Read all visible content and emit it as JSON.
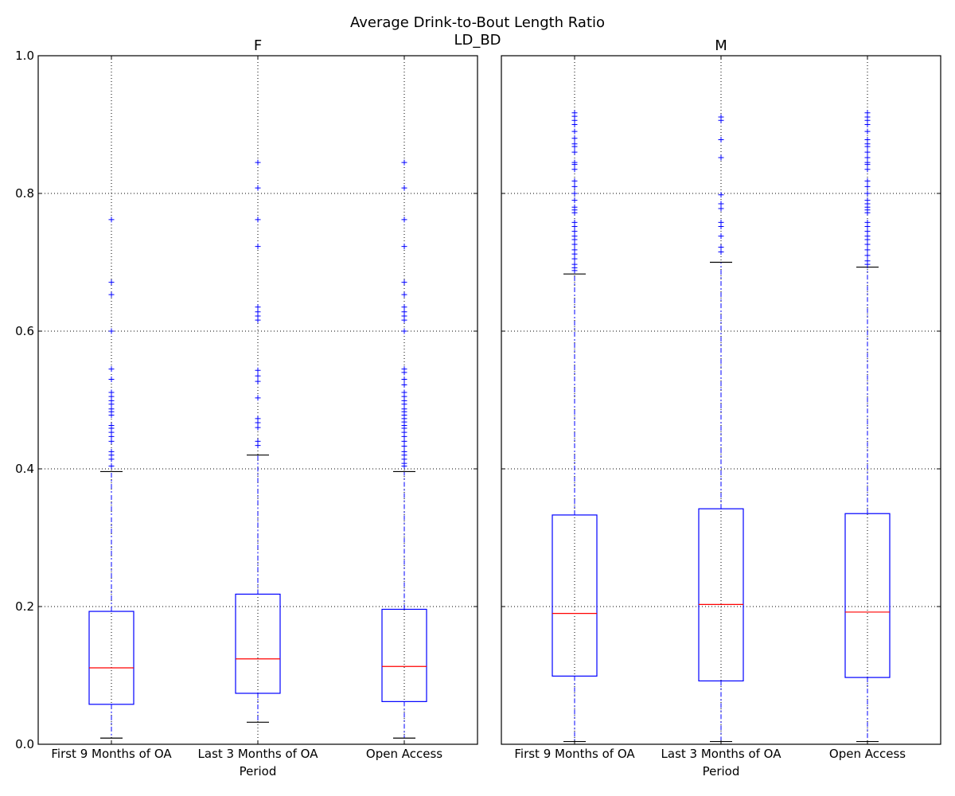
{
  "figure": {
    "suptitle": "Average Drink-to-Bout Length Ratio",
    "subtitle": "LD_BD"
  },
  "colors": {
    "box": "#0000ff",
    "median": "#ff0000",
    "whisker": "#0000ff",
    "cap": "#000000",
    "flier": "#0000ff",
    "grid": "#000000"
  },
  "chart_data": [
    {
      "type": "box",
      "title": "F",
      "xlabel": "Period",
      "ylabel": "",
      "ylim": [
        0.0,
        1.0
      ],
      "yticks": [
        0.0,
        0.2,
        0.4,
        0.6,
        0.8,
        1.0
      ],
      "ytick_labels": [
        "0.0",
        "0.2",
        "0.4",
        "0.6",
        "0.8",
        "1.0"
      ],
      "grid": true,
      "categories": [
        "First 9 Months of OA",
        "Last 3 Months of OA",
        "Open Access"
      ],
      "boxes": [
        {
          "whislo": 0.009,
          "q1": 0.058,
          "med": 0.111,
          "q3": 0.193,
          "whishi": 0.396,
          "fliers": [
            0.404,
            0.414,
            0.42,
            0.425,
            0.44,
            0.447,
            0.453,
            0.459,
            0.463,
            0.478,
            0.483,
            0.487,
            0.494,
            0.499,
            0.505,
            0.511,
            0.53,
            0.545,
            0.6,
            0.653,
            0.671,
            0.762
          ]
        },
        {
          "whislo": 0.032,
          "q1": 0.074,
          "med": 0.124,
          "q3": 0.218,
          "whishi": 0.42,
          "fliers": [
            0.434,
            0.44,
            0.46,
            0.467,
            0.473,
            0.503,
            0.527,
            0.535,
            0.543,
            0.616,
            0.622,
            0.628,
            0.635,
            0.723,
            0.762,
            0.808,
            0.845
          ]
        },
        {
          "whislo": 0.009,
          "q1": 0.062,
          "med": 0.113,
          "q3": 0.196,
          "whishi": 0.396,
          "fliers": [
            0.404,
            0.408,
            0.414,
            0.42,
            0.425,
            0.433,
            0.44,
            0.447,
            0.453,
            0.459,
            0.463,
            0.468,
            0.473,
            0.478,
            0.483,
            0.487,
            0.494,
            0.499,
            0.505,
            0.511,
            0.522,
            0.53,
            0.54,
            0.545,
            0.6,
            0.616,
            0.622,
            0.628,
            0.635,
            0.653,
            0.671,
            0.723,
            0.762,
            0.808,
            0.845
          ]
        }
      ]
    },
    {
      "type": "box",
      "title": "M",
      "xlabel": "Period",
      "ylabel": "",
      "ylim": [
        0.0,
        1.0
      ],
      "yticks": [
        0.0,
        0.2,
        0.4,
        0.6,
        0.8,
        1.0
      ],
      "ytick_labels": [
        "",
        "",
        "",
        "",
        "",
        ""
      ],
      "grid": true,
      "categories": [
        "First 9 Months of OA",
        "Last 3 Months of OA",
        "Open Access"
      ],
      "boxes": [
        {
          "whislo": 0.004,
          "q1": 0.099,
          "med": 0.19,
          "q3": 0.333,
          "whishi": 0.683,
          "fliers": [
            0.688,
            0.692,
            0.697,
            0.705,
            0.712,
            0.718,
            0.726,
            0.733,
            0.738,
            0.745,
            0.752,
            0.758,
            0.772,
            0.776,
            0.78,
            0.79,
            0.8,
            0.81,
            0.818,
            0.835,
            0.842,
            0.845,
            0.86,
            0.868,
            0.872,
            0.88,
            0.89,
            0.9,
            0.906,
            0.912,
            0.917
          ]
        },
        {
          "whislo": 0.004,
          "q1": 0.092,
          "med": 0.203,
          "q3": 0.342,
          "whishi": 0.7,
          "fliers": [
            0.715,
            0.722,
            0.738,
            0.752,
            0.758,
            0.778,
            0.785,
            0.798,
            0.852,
            0.878,
            0.906,
            0.911
          ]
        },
        {
          "whislo": 0.004,
          "q1": 0.097,
          "med": 0.192,
          "q3": 0.335,
          "whishi": 0.693,
          "fliers": [
            0.697,
            0.702,
            0.71,
            0.718,
            0.726,
            0.733,
            0.738,
            0.745,
            0.752,
            0.758,
            0.772,
            0.776,
            0.78,
            0.785,
            0.79,
            0.8,
            0.81,
            0.818,
            0.835,
            0.842,
            0.845,
            0.852,
            0.86,
            0.868,
            0.872,
            0.878,
            0.89,
            0.9,
            0.906,
            0.911,
            0.917
          ]
        }
      ]
    }
  ]
}
